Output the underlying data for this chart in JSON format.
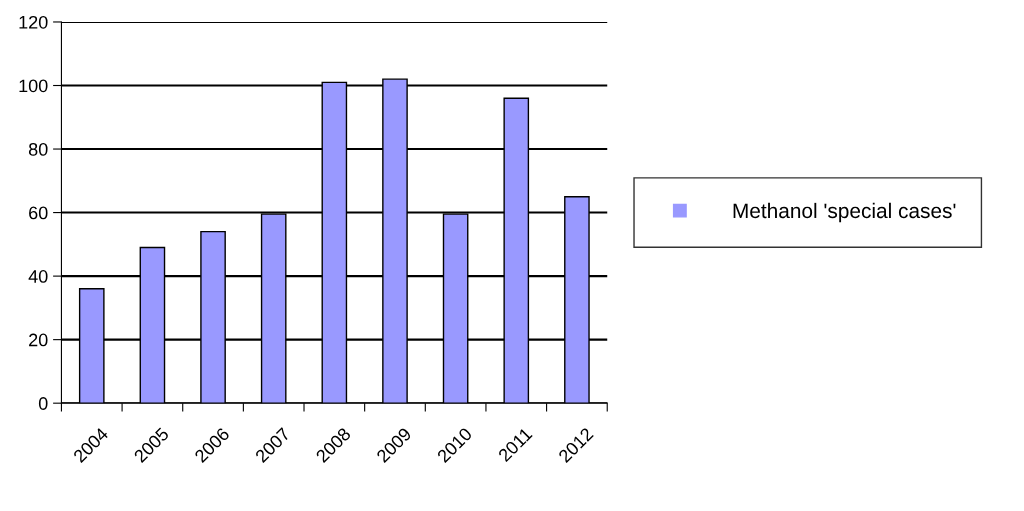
{
  "chart_data": {
    "type": "bar",
    "categories": [
      "2004",
      "2005",
      "2006",
      "2007",
      "2008",
      "2009",
      "2010",
      "2011",
      "2012"
    ],
    "series": [
      {
        "name": "Methanol 'special cases'",
        "color": "#9999ff",
        "values": [
          36,
          49,
          54,
          59.5,
          101,
          102,
          59.5,
          96,
          65
        ]
      }
    ],
    "ylim": [
      0,
      120
    ],
    "yticks": [
      0,
      20,
      40,
      60,
      80,
      100,
      120
    ],
    "grid": "y",
    "legend": "right"
  }
}
